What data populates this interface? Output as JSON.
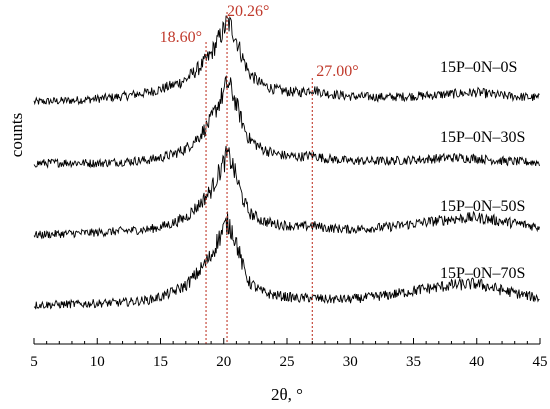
{
  "chart_data": {
    "type": "line",
    "title": "",
    "xlabel": "2θ, °",
    "ylabel": "counts",
    "xlim": [
      5,
      45
    ],
    "x_ticks": [
      5,
      10,
      15,
      20,
      25,
      30,
      35,
      40,
      45
    ],
    "x_tick_labels": [
      "5",
      "10",
      "15",
      "20",
      "25",
      "30",
      "35",
      "40",
      "45"
    ],
    "y_ticks": "none",
    "grid": false,
    "series": [
      {
        "name": "15P–0N–0S",
        "profile": {
          "x": [
            5,
            8,
            10,
            12,
            14,
            15,
            16,
            17,
            18,
            18.6,
            19,
            19.5,
            20,
            20.26,
            20.6,
            21,
            21.5,
            22,
            23,
            24,
            25,
            26,
            27,
            28,
            30,
            33,
            36,
            38,
            40,
            42,
            45
          ],
          "y_rel": [
            0.0,
            0.02,
            0.04,
            0.07,
            0.12,
            0.16,
            0.21,
            0.28,
            0.42,
            0.52,
            0.6,
            0.76,
            0.9,
            1.0,
            0.94,
            0.78,
            0.55,
            0.36,
            0.22,
            0.16,
            0.13,
            0.12,
            0.16,
            0.11,
            0.07,
            0.06,
            0.08,
            0.1,
            0.12,
            0.08,
            0.05
          ]
        }
      },
      {
        "name": "15P–0N–30S",
        "profile": {
          "x": [
            5,
            8,
            10,
            12,
            14,
            15,
            16,
            17,
            18,
            18.6,
            19,
            19.5,
            20,
            20.26,
            20.6,
            21,
            21.5,
            22,
            23,
            24,
            25,
            26,
            27,
            28,
            30,
            33,
            36,
            38,
            40,
            42,
            45
          ],
          "y_rel": [
            0.02,
            0.03,
            0.02,
            0.04,
            0.06,
            0.09,
            0.13,
            0.2,
            0.34,
            0.46,
            0.55,
            0.72,
            0.88,
            1.0,
            0.92,
            0.74,
            0.5,
            0.32,
            0.2,
            0.14,
            0.11,
            0.1,
            0.12,
            0.08,
            0.05,
            0.05,
            0.07,
            0.09,
            0.08,
            0.05,
            0.03
          ]
        }
      },
      {
        "name": "15P–0N–50S",
        "profile": {
          "x": [
            5,
            8,
            10,
            12,
            14,
            15,
            16,
            17,
            18,
            18.6,
            19,
            19.5,
            20,
            20.26,
            20.6,
            21,
            21.5,
            22,
            23,
            24,
            25,
            26,
            27,
            28,
            30,
            33,
            36,
            38,
            40,
            42,
            45
          ],
          "y_rel": [
            0.0,
            0.02,
            0.03,
            0.05,
            0.07,
            0.1,
            0.15,
            0.22,
            0.37,
            0.48,
            0.56,
            0.74,
            0.9,
            1.0,
            0.92,
            0.72,
            0.46,
            0.28,
            0.18,
            0.14,
            0.12,
            0.1,
            0.12,
            0.09,
            0.07,
            0.1,
            0.16,
            0.2,
            0.22,
            0.17,
            0.1
          ]
        }
      },
      {
        "name": "15P–0N–70S",
        "profile": {
          "x": [
            5,
            8,
            10,
            12,
            14,
            15,
            16,
            17,
            18,
            18.6,
            19,
            19.5,
            20,
            20.26,
            20.6,
            21,
            21.5,
            22,
            23,
            24,
            25,
            26,
            27,
            28,
            30,
            33,
            36,
            38,
            40,
            42,
            45
          ],
          "y_rel": [
            0.0,
            0.01,
            0.02,
            0.03,
            0.06,
            0.1,
            0.16,
            0.24,
            0.4,
            0.52,
            0.6,
            0.78,
            0.92,
            1.0,
            0.94,
            0.76,
            0.48,
            0.28,
            0.16,
            0.12,
            0.1,
            0.08,
            0.09,
            0.07,
            0.07,
            0.12,
            0.2,
            0.24,
            0.26,
            0.18,
            0.08
          ]
        }
      }
    ],
    "reference_lines": [
      {
        "x": 18.6,
        "label": "18.60°"
      },
      {
        "x": 20.26,
        "label": "20.26°"
      },
      {
        "x": 27.0,
        "label": "27.00°"
      }
    ],
    "reference_color": "#c0392b"
  }
}
